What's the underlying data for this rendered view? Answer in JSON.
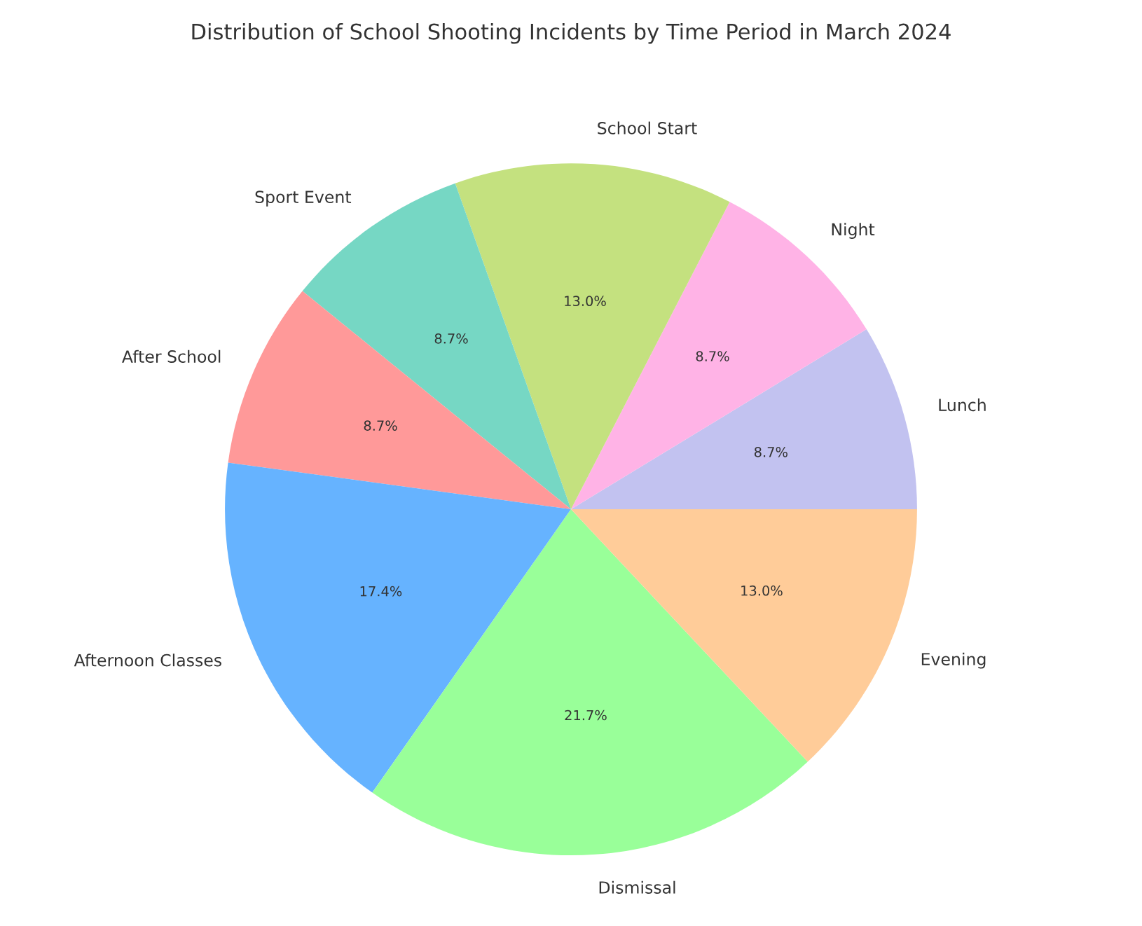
{
  "chart_data": {
    "type": "pie",
    "title": "Distribution of School Shooting Incidents by Time Period in March 2024",
    "categories": [
      "Lunch",
      "Night",
      "School Start",
      "Sport Event",
      "After School",
      "Afternoon Classes",
      "Dismissal",
      "Evening"
    ],
    "values": [
      8.7,
      8.7,
      13.0,
      8.7,
      8.7,
      17.4,
      21.7,
      13.0
    ],
    "value_labels": [
      "8.7%",
      "8.7%",
      "13.0%",
      "8.7%",
      "8.7%",
      "17.4%",
      "21.7%",
      "13.0%"
    ],
    "colors": [
      "#c2c2f0",
      "#ffb3e6",
      "#c4e17f",
      "#76d7c4",
      "#ff9999",
      "#66b3ff",
      "#99ff99",
      "#ffcc99"
    ]
  }
}
